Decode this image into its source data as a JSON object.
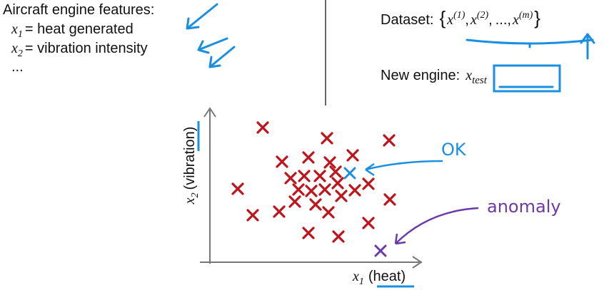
{
  "features": {
    "title": "Aircraft engine features:",
    "items": [
      {
        "var": "x",
        "sub": "1",
        "text": "= heat generated"
      },
      {
        "var": "x",
        "sub": "2",
        "text": "= vibration intensity"
      }
    ],
    "more": "..."
  },
  "dataset": {
    "label": "Dataset:",
    "open": "{",
    "close": "}",
    "separator": ",",
    "ellipsis": "...",
    "items": [
      {
        "var": "x",
        "sup": "(1)"
      },
      {
        "var": "x",
        "sup": "(2)"
      },
      {
        "var": "x",
        "sup": "(m)"
      }
    ]
  },
  "new_engine": {
    "label": "New engine:",
    "var": "x",
    "sub": "test"
  },
  "plot": {
    "y_label": {
      "var": "x",
      "sub": "2",
      "text": "(vibration)"
    },
    "x_label": {
      "var": "x",
      "sub": "1",
      "text": "(heat)"
    },
    "ok_label": "OK",
    "anomaly_label": "anomaly"
  }
}
